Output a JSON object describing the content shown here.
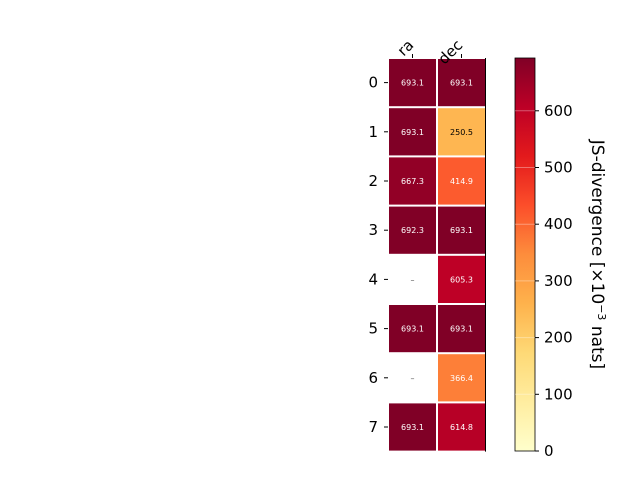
{
  "chart_data": {
    "type": "heatmap",
    "title": "",
    "x_categories": [
      "ra",
      "dec"
    ],
    "y_categories": [
      "0",
      "1",
      "2",
      "3",
      "4",
      "5",
      "6",
      "7"
    ],
    "values": [
      [
        693.1,
        693.1
      ],
      [
        693.1,
        250.5
      ],
      [
        667.3,
        414.9
      ],
      [
        692.3,
        693.1
      ],
      [
        null,
        605.3
      ],
      [
        693.1,
        693.1
      ],
      [
        null,
        366.4
      ],
      [
        693.1,
        614.8
      ]
    ],
    "missing_label": "–",
    "colorbar": {
      "label_prefix": "JS-divergence [×10",
      "label_exponent": "−3",
      "label_suffix": " nats]",
      "range": [
        0,
        693.1
      ],
      "ticks": [
        "0",
        "100",
        "200",
        "300",
        "400",
        "500",
        "600"
      ],
      "tick_values": [
        0,
        100,
        200,
        300,
        400,
        500,
        600
      ],
      "colormap": "YlOrRd",
      "colormap_stops": [
        "#ffffcc",
        "#ffeda0",
        "#fed976",
        "#feb24c",
        "#fd8d3c",
        "#fc4e2a",
        "#e31a1c",
        "#bd0026",
        "#800026"
      ]
    }
  }
}
